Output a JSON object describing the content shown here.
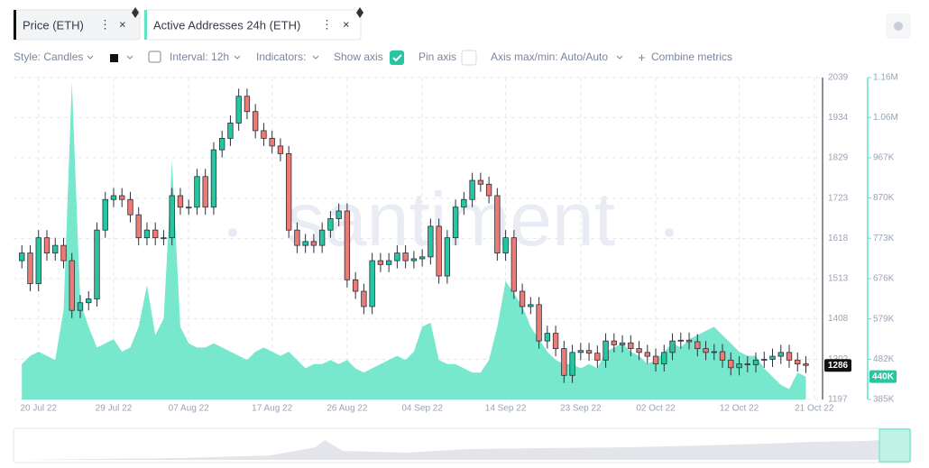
{
  "tabs": {
    "price": "Price (ETH)"
  },
  "toolbar": {
    "style": "Style: Candles",
    "interval": "Interval: 12h",
    "indicators": "Indicators:",
    "show_axis": "Show axis",
    "pin_axis": "Pin axis",
    "axis_range": "Axis max/min: Auto/Auto",
    "combine": "Combine metrics"
  },
  "chart_data": {
    "type": "candlestick",
    "watermark": "santiment",
    "up_color": "#26c6a0",
    "down_color": "#ec7b74",
    "grid": true,
    "x": [
      "2022-07-18",
      "2022-07-19",
      "2022-07-20",
      "2022-07-21",
      "2022-07-22",
      "2022-07-23",
      "2022-07-24",
      "2022-07-25",
      "2022-07-26",
      "2022-07-27",
      "2022-07-28",
      "2022-07-29",
      "2022-07-30",
      "2022-07-31",
      "2022-08-01",
      "2022-08-02",
      "2022-08-03",
      "2022-08-04",
      "2022-08-05",
      "2022-08-06",
      "2022-08-07",
      "2022-08-08",
      "2022-08-09",
      "2022-08-10",
      "2022-08-11",
      "2022-08-12",
      "2022-08-13",
      "2022-08-14",
      "2022-08-15",
      "2022-08-16",
      "2022-08-17",
      "2022-08-18",
      "2022-08-19",
      "2022-08-20",
      "2022-08-21",
      "2022-08-22",
      "2022-08-23",
      "2022-08-24",
      "2022-08-25",
      "2022-08-26",
      "2022-08-27",
      "2022-08-28",
      "2022-08-29",
      "2022-08-30",
      "2022-08-31",
      "2022-09-01",
      "2022-09-02",
      "2022-09-03",
      "2022-09-04",
      "2022-09-05",
      "2022-09-06",
      "2022-09-07",
      "2022-09-08",
      "2022-09-09",
      "2022-09-10",
      "2022-09-11",
      "2022-09-12",
      "2022-09-13",
      "2022-09-14",
      "2022-09-15",
      "2022-09-16",
      "2022-09-17",
      "2022-09-18",
      "2022-09-19",
      "2022-09-20",
      "2022-09-21",
      "2022-09-22",
      "2022-09-23",
      "2022-09-24",
      "2022-09-25",
      "2022-09-26",
      "2022-09-27",
      "2022-09-28",
      "2022-09-29",
      "2022-09-30",
      "2022-10-01",
      "2022-10-02",
      "2022-10-03",
      "2022-10-04",
      "2022-10-05",
      "2022-10-06",
      "2022-10-07",
      "2022-10-08",
      "2022-10-09",
      "2022-10-10",
      "2022-10-11",
      "2022-10-12",
      "2022-10-13",
      "2022-10-14",
      "2022-10-15",
      "2022-10-16",
      "2022-10-17",
      "2022-10-18",
      "2022-10-19",
      "2022-10-20"
    ],
    "open": [
      1560,
      1580,
      1500,
      1620,
      1580,
      1600,
      1560,
      1430,
      1450,
      1460,
      1640,
      1720,
      1730,
      1720,
      1680,
      1620,
      1640,
      1620,
      1620,
      1730,
      1700,
      1700,
      1780,
      1700,
      1850,
      1880,
      1920,
      1990,
      1950,
      1900,
      1880,
      1860,
      1840,
      1640,
      1600,
      1610,
      1600,
      1640,
      1670,
      1690,
      1510,
      1480,
      1440,
      1560,
      1550,
      1560,
      1580,
      1560,
      1565,
      1570,
      1650,
      1520,
      1620,
      1700,
      1720,
      1770,
      1760,
      1730,
      1580,
      1620,
      1480,
      1440,
      1445,
      1350,
      1370,
      1330,
      1260,
      1320,
      1325,
      1318,
      1300,
      1350,
      1340,
      1345,
      1330,
      1320,
      1310,
      1290,
      1320,
      1350,
      1352,
      1348,
      1330,
      1320,
      1322,
      1300,
      1280,
      1290,
      1288,
      1300,
      1302,
      1310,
      1320,
      1300,
      1290
    ],
    "high": [
      1600,
      1600,
      1640,
      1640,
      1620,
      1620,
      1580,
      1470,
      1480,
      1660,
      1740,
      1750,
      1750,
      1740,
      1700,
      1660,
      1660,
      1640,
      1750,
      1750,
      1720,
      1800,
      1800,
      1870,
      1900,
      1940,
      2010,
      2010,
      1970,
      1920,
      1900,
      1880,
      1860,
      1660,
      1630,
      1630,
      1660,
      1690,
      1710,
      1710,
      1530,
      1500,
      1580,
      1580,
      1580,
      1600,
      1600,
      1585,
      1590,
      1670,
      1670,
      1640,
      1720,
      1740,
      1790,
      1790,
      1780,
      1750,
      1640,
      1640,
      1500,
      1465,
      1465,
      1390,
      1390,
      1350,
      1340,
      1345,
      1345,
      1338,
      1370,
      1370,
      1365,
      1365,
      1350,
      1340,
      1330,
      1340,
      1370,
      1372,
      1372,
      1368,
      1350,
      1342,
      1342,
      1320,
      1310,
      1310,
      1320,
      1322,
      1330,
      1340,
      1340,
      1320,
      1310
    ],
    "low": [
      1540,
      1480,
      1480,
      1560,
      1560,
      1540,
      1410,
      1410,
      1430,
      1440,
      1620,
      1700,
      1700,
      1660,
      1600,
      1600,
      1600,
      1600,
      1600,
      1680,
      1680,
      1680,
      1680,
      1680,
      1830,
      1860,
      1900,
      1930,
      1880,
      1860,
      1840,
      1820,
      1620,
      1580,
      1580,
      1580,
      1580,
      1620,
      1650,
      1490,
      1460,
      1420,
      1420,
      1530,
      1530,
      1540,
      1540,
      1540,
      1545,
      1550,
      1500,
      1500,
      1600,
      1680,
      1700,
      1740,
      1710,
      1560,
      1560,
      1460,
      1420,
      1420,
      1330,
      1330,
      1310,
      1240,
      1240,
      1300,
      1298,
      1280,
      1280,
      1320,
      1320,
      1310,
      1300,
      1290,
      1270,
      1270,
      1300,
      1330,
      1328,
      1310,
      1300,
      1300,
      1280,
      1260,
      1260,
      1268,
      1268,
      1280,
      1282,
      1290,
      1280,
      1270,
      1266
    ],
    "close": [
      1580,
      1500,
      1620,
      1580,
      1600,
      1560,
      1430,
      1450,
      1460,
      1640,
      1720,
      1730,
      1720,
      1680,
      1620,
      1640,
      1620,
      1620,
      1730,
      1700,
      1700,
      1780,
      1700,
      1850,
      1880,
      1920,
      1990,
      1950,
      1900,
      1880,
      1860,
      1840,
      1640,
      1600,
      1610,
      1600,
      1640,
      1670,
      1690,
      1510,
      1480,
      1440,
      1560,
      1550,
      1560,
      1580,
      1560,
      1565,
      1570,
      1650,
      1520,
      1620,
      1700,
      1720,
      1770,
      1760,
      1730,
      1580,
      1620,
      1480,
      1440,
      1445,
      1350,
      1370,
      1330,
      1260,
      1320,
      1325,
      1318,
      1300,
      1350,
      1340,
      1345,
      1330,
      1320,
      1310,
      1290,
      1320,
      1350,
      1352,
      1348,
      1330,
      1320,
      1322,
      1300,
      1280,
      1290,
      1288,
      1300,
      1302,
      1310,
      1320,
      1300,
      1290,
      1286
    ],
    "series": [
      {
        "name": "Active Addresses 24h (ETH)",
        "type": "area",
        "axis": "y2",
        "color": "#5fe3c4",
        "values": [
          470000,
          490000,
          500000,
          490000,
          480000,
          600000,
          1150000,
          620000,
          560000,
          510000,
          520000,
          530000,
          500000,
          510000,
          560000,
          660000,
          540000,
          580000,
          960000,
          560000,
          520000,
          510000,
          510000,
          520000,
          510000,
          500000,
          490000,
          480000,
          500000,
          510000,
          500000,
          490000,
          500000,
          480000,
          460000,
          470000,
          470000,
          480000,
          470000,
          480000,
          460000,
          450000,
          460000,
          470000,
          480000,
          490000,
          480000,
          500000,
          560000,
          570000,
          480000,
          470000,
          470000,
          460000,
          450000,
          450000,
          480000,
          560000,
          670000,
          640000,
          610000,
          560000,
          530000,
          500000,
          480000,
          470000,
          470000,
          460000,
          470000,
          460000,
          500000,
          510000,
          520000,
          500000,
          490000,
          470000,
          480000,
          500000,
          520000,
          510000,
          530000,
          540000,
          550000,
          560000,
          540000,
          520000,
          500000,
          490000,
          490000,
          460000,
          440000,
          420000,
          410000,
          450000,
          440000
        ]
      }
    ],
    "xlim": [
      "2022-07-17",
      "2022-10-22"
    ],
    "xticks": [
      {
        "value": "2022-07-20",
        "label": "20 Jul 22"
      },
      {
        "value": "2022-07-29",
        "label": "29 Jul 22"
      },
      {
        "value": "2022-08-07",
        "label": "07 Aug 22"
      },
      {
        "value": "2022-08-17",
        "label": "17 Aug 22"
      },
      {
        "value": "2022-08-26",
        "label": "26 Aug 22"
      },
      {
        "value": "2022-09-04",
        "label": "04 Sep 22"
      },
      {
        "value": "2022-09-14",
        "label": "14 Sep 22"
      },
      {
        "value": "2022-09-23",
        "label": "23 Sep 22"
      },
      {
        "value": "2022-10-02",
        "label": "02 Oct 22"
      },
      {
        "value": "2022-10-12",
        "label": "12 Oct 22"
      },
      {
        "value": "2022-10-21",
        "label": "21 Oct 22"
      }
    ],
    "ylim": [
      1197,
      2039
    ],
    "yticks": [
      1197,
      1302,
      1408,
      1513,
      1618,
      1723,
      1829,
      1934,
      2039
    ],
    "y2lim": [
      385000,
      1160000
    ],
    "y2ticks": [
      {
        "value": 385000,
        "label": "385K"
      },
      {
        "value": 482000,
        "label": "482K"
      },
      {
        "value": 579000,
        "label": "579K"
      },
      {
        "value": 676000,
        "label": "676K"
      },
      {
        "value": 773000,
        "label": "773K"
      },
      {
        "value": 870000,
        "label": "870K"
      },
      {
        "value": 967000,
        "label": "967K"
      },
      {
        "value": 1064000,
        "label": "1.06M"
      },
      {
        "value": 1160000,
        "label": "1.16M"
      }
    ],
    "badges": [
      {
        "value": 1286,
        "axis": "y"
      },
      {
        "value": 440000,
        "label": "440K",
        "axis": "y2"
      }
    ]
  }
}
